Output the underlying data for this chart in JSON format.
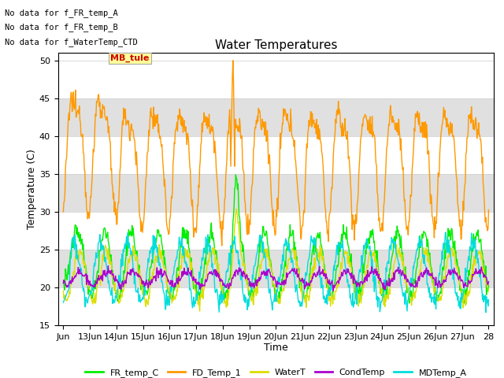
{
  "title": "Water Temperatures",
  "xlabel": "Time",
  "ylabel": "Temperature (C)",
  "ylim": [
    15,
    51
  ],
  "yticks": [
    15,
    20,
    25,
    30,
    35,
    40,
    45,
    50
  ],
  "x_labels": [
    "Jun",
    "13Jun",
    "14Jun",
    "15Jun",
    "16Jun",
    "17Jun",
    "18Jun",
    "19Jun",
    "20Jun",
    "21Jun",
    "22Jun",
    "23Jun",
    "24Jun",
    "25Jun",
    "26Jun",
    "27Jun",
    "28"
  ],
  "bg_color": "#ffffff",
  "stripe_color": "#e0e0e0",
  "stripe_ranges": [
    [
      20,
      25
    ],
    [
      30,
      35
    ],
    [
      40,
      45
    ]
  ],
  "no_data_texts": [
    "No data for f_FR_temp_A",
    "No data for f_FR_temp_B",
    "No data for f_WaterTemp_CTD"
  ],
  "mb_tule_label": "MB_tule",
  "mb_tule_color": "#cc0000",
  "mb_tule_bg": "#ffff99",
  "legend_entries": [
    {
      "label": "FR_temp_C",
      "color": "#00ee00"
    },
    {
      "label": "FD_Temp_1",
      "color": "#ff9900"
    },
    {
      "label": "WaterT",
      "color": "#dddd00"
    },
    {
      "label": "CondTemp",
      "color": "#aa00cc"
    },
    {
      "label": "MDTemp_A",
      "color": "#00dddd"
    }
  ],
  "fd_base": 37,
  "fd_amp_main": 7,
  "fd_amp_harm": 2.5,
  "fr_base": 23,
  "fr_amp": 4.2,
  "wt_base": 21.5,
  "wt_amp": 3.2,
  "ct_base": 21.2,
  "ct_amp": 0.9,
  "md_base": 22,
  "md_amp": 4.0
}
